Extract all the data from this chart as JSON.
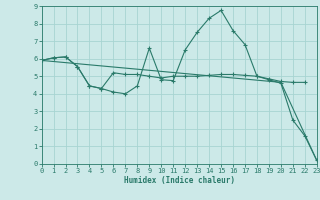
{
  "xlabel": "Humidex (Indice chaleur)",
  "xlim": [
    0,
    23
  ],
  "ylim": [
    0,
    9
  ],
  "xticks": [
    0,
    1,
    2,
    3,
    4,
    5,
    6,
    7,
    8,
    9,
    10,
    11,
    12,
    13,
    14,
    15,
    16,
    17,
    18,
    19,
    20,
    21,
    22,
    23
  ],
  "yticks": [
    0,
    1,
    2,
    3,
    4,
    5,
    6,
    7,
    8,
    9
  ],
  "bg_color": "#cce9e8",
  "line_color": "#2a7a6a",
  "grid_color": "#a8d4d2",
  "line1_x": [
    0,
    1,
    2,
    3,
    4,
    5,
    6,
    7,
    8,
    9,
    10,
    11,
    12,
    13,
    14,
    15,
    16,
    17,
    18,
    19,
    20,
    21,
    22,
    23
  ],
  "line1_y": [
    5.9,
    6.05,
    6.1,
    5.55,
    4.45,
    4.3,
    4.1,
    4.0,
    4.45,
    6.6,
    4.8,
    4.75,
    6.5,
    7.5,
    8.3,
    8.75,
    7.6,
    6.8,
    5.0,
    4.8,
    4.6,
    2.5,
    1.6,
    0.2
  ],
  "line2_x": [
    0,
    1,
    2,
    3,
    4,
    5,
    6,
    7,
    8,
    9,
    10,
    11,
    12,
    13,
    14,
    15,
    16,
    17,
    18,
    19,
    20,
    21,
    22
  ],
  "line2_y": [
    5.9,
    6.05,
    6.1,
    5.55,
    4.45,
    4.3,
    5.2,
    5.1,
    5.1,
    5.0,
    4.9,
    5.0,
    5.0,
    5.0,
    5.05,
    5.1,
    5.1,
    5.05,
    5.0,
    4.85,
    4.7,
    4.65,
    4.65
  ],
  "line3_x": [
    0,
    20,
    23
  ],
  "line3_y": [
    5.9,
    4.65,
    0.2
  ]
}
